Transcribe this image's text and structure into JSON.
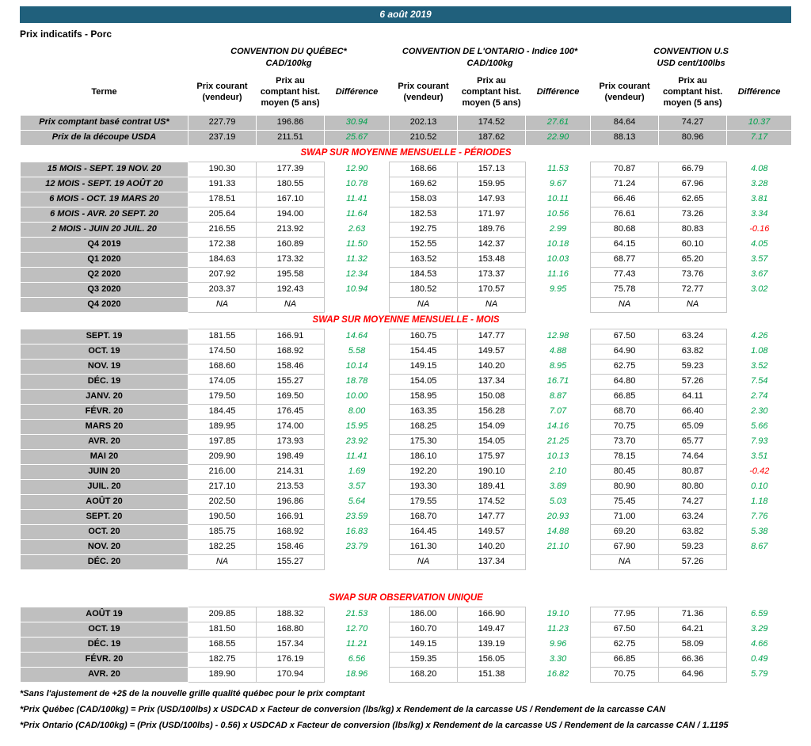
{
  "header": {
    "date": "6 août 2019",
    "title": "Prix indicatifs - Porc"
  },
  "groups": [
    {
      "name": "CONVENTION DU QUÉBEC*",
      "unit": "CAD/100kg"
    },
    {
      "name": "CONVENTION DE L'ONTARIO - Indice 100*",
      "unit": "CAD/100kg"
    },
    {
      "name": "CONVENTION U.S",
      "unit": "USD cent/100lbs"
    }
  ],
  "columns": {
    "terme": "Terme",
    "prix_courant": "Prix courant (vendeur)",
    "prix_comptant": "Prix au comptant hist. moyen (5 ans)",
    "difference": "Différence"
  },
  "top_rows": [
    {
      "terme": "Prix comptant basé contrat US*",
      "values": [
        "227.79",
        "196.86",
        "30.94",
        "202.13",
        "174.52",
        "27.61",
        "84.64",
        "74.27",
        "10.37"
      ]
    },
    {
      "terme": "Prix de la découpe USDA",
      "values": [
        "237.19",
        "211.51",
        "25.67",
        "210.52",
        "187.62",
        "22.90",
        "88.13",
        "80.96",
        "7.17"
      ]
    }
  ],
  "sections": [
    {
      "title": "SWAP SUR MOYENNE MENSUELLE - PÉRIODES",
      "rows": [
        {
          "terme": "15 MOIS -  SEPT. 19 NOV. 20",
          "values": [
            "190.30",
            "177.39",
            "12.90",
            "168.66",
            "157.13",
            "11.53",
            "70.87",
            "66.79",
            "4.08"
          ]
        },
        {
          "terme": "12 MOIS -  SEPT. 19 AOÛT 20",
          "values": [
            "191.33",
            "180.55",
            "10.78",
            "169.62",
            "159.95",
            "9.67",
            "71.24",
            "67.96",
            "3.28"
          ]
        },
        {
          "terme": "6 MOIS -  OCT. 19 MARS 20",
          "values": [
            "178.51",
            "167.10",
            "11.41",
            "158.03",
            "147.93",
            "10.11",
            "66.46",
            "62.65",
            "3.81"
          ]
        },
        {
          "terme": "6 MOIS -  AVR. 20 SEPT. 20",
          "values": [
            "205.64",
            "194.00",
            "11.64",
            "182.53",
            "171.97",
            "10.56",
            "76.61",
            "73.26",
            "3.34"
          ]
        },
        {
          "terme": "2 MOIS -  JUIN 20  JUIL. 20",
          "values": [
            "216.55",
            "213.92",
            "2.63",
            "192.75",
            "189.76",
            "2.99",
            "80.68",
            "80.83",
            "-0.16"
          ]
        },
        {
          "terme": "Q4 2019",
          "values": [
            "172.38",
            "160.89",
            "11.50",
            "152.55",
            "142.37",
            "10.18",
            "64.15",
            "60.10",
            "4.05"
          ]
        },
        {
          "terme": "Q1 2020",
          "values": [
            "184.63",
            "173.32",
            "11.32",
            "163.52",
            "153.48",
            "10.03",
            "68.77",
            "65.20",
            "3.57"
          ]
        },
        {
          "terme": "Q2 2020",
          "values": [
            "207.92",
            "195.58",
            "12.34",
            "184.53",
            "173.37",
            "11.16",
            "77.43",
            "73.76",
            "3.67"
          ]
        },
        {
          "terme": "Q3 2020",
          "values": [
            "203.37",
            "192.43",
            "10.94",
            "180.52",
            "170.57",
            "9.95",
            "75.78",
            "72.77",
            "3.02"
          ]
        },
        {
          "terme": "Q4 2020",
          "values": [
            "NA",
            "NA",
            "",
            "NA",
            "NA",
            "",
            "NA",
            "NA",
            ""
          ]
        }
      ]
    },
    {
      "title": "SWAP SUR MOYENNE MENSUELLE - MOIS",
      "rows": [
        {
          "terme": "SEPT. 19",
          "values": [
            "181.55",
            "166.91",
            "14.64",
            "160.75",
            "147.77",
            "12.98",
            "67.50",
            "63.24",
            "4.26"
          ]
        },
        {
          "terme": "OCT. 19",
          "values": [
            "174.50",
            "168.92",
            "5.58",
            "154.45",
            "149.57",
            "4.88",
            "64.90",
            "63.82",
            "1.08"
          ]
        },
        {
          "terme": "NOV. 19",
          "values": [
            "168.60",
            "158.46",
            "10.14",
            "149.15",
            "140.20",
            "8.95",
            "62.75",
            "59.23",
            "3.52"
          ]
        },
        {
          "terme": "DÉC. 19",
          "values": [
            "174.05",
            "155.27",
            "18.78",
            "154.05",
            "137.34",
            "16.71",
            "64.80",
            "57.26",
            "7.54"
          ]
        },
        {
          "terme": "JANV. 20",
          "values": [
            "179.50",
            "169.50",
            "10.00",
            "158.95",
            "150.08",
            "8.87",
            "66.85",
            "64.11",
            "2.74"
          ]
        },
        {
          "terme": "FÉVR. 20",
          "values": [
            "184.45",
            "176.45",
            "8.00",
            "163.35",
            "156.28",
            "7.07",
            "68.70",
            "66.40",
            "2.30"
          ]
        },
        {
          "terme": "MARS 20",
          "values": [
            "189.95",
            "174.00",
            "15.95",
            "168.25",
            "154.09",
            "14.16",
            "70.75",
            "65.09",
            "5.66"
          ]
        },
        {
          "terme": "AVR. 20",
          "values": [
            "197.85",
            "173.93",
            "23.92",
            "175.30",
            "154.05",
            "21.25",
            "73.70",
            "65.77",
            "7.93"
          ]
        },
        {
          "terme": "MAI 20",
          "values": [
            "209.90",
            "198.49",
            "11.41",
            "186.10",
            "175.97",
            "10.13",
            "78.15",
            "74.64",
            "3.51"
          ]
        },
        {
          "terme": "JUIN 20",
          "values": [
            "216.00",
            "214.31",
            "1.69",
            "192.20",
            "190.10",
            "2.10",
            "80.45",
            "80.87",
            "-0.42"
          ]
        },
        {
          "terme": "JUIL. 20",
          "values": [
            "217.10",
            "213.53",
            "3.57",
            "193.30",
            "189.41",
            "3.89",
            "80.90",
            "80.80",
            "0.10"
          ]
        },
        {
          "terme": "AOÛT 20",
          "values": [
            "202.50",
            "196.86",
            "5.64",
            "179.55",
            "174.52",
            "5.03",
            "75.45",
            "74.27",
            "1.18"
          ]
        },
        {
          "terme": "SEPT. 20",
          "values": [
            "190.50",
            "166.91",
            "23.59",
            "168.70",
            "147.77",
            "20.93",
            "71.00",
            "63.24",
            "7.76"
          ]
        },
        {
          "terme": "OCT. 20",
          "values": [
            "185.75",
            "168.92",
            "16.83",
            "164.45",
            "149.57",
            "14.88",
            "69.20",
            "63.82",
            "5.38"
          ]
        },
        {
          "terme": "NOV. 20",
          "values": [
            "182.25",
            "158.46",
            "23.79",
            "161.30",
            "140.20",
            "21.10",
            "67.90",
            "59.23",
            "8.67"
          ]
        },
        {
          "terme": "DÉC. 20",
          "values": [
            "NA",
            "155.27",
            "",
            "NA",
            "137.34",
            "",
            "NA",
            "57.26",
            ""
          ]
        }
      ]
    },
    {
      "title": "SWAP SUR OBSERVATION UNIQUE",
      "rows": [
        {
          "terme": "AOÛT 19",
          "values": [
            "209.85",
            "188.32",
            "21.53",
            "186.00",
            "166.90",
            "19.10",
            "77.95",
            "71.36",
            "6.59"
          ]
        },
        {
          "terme": "OCT. 19",
          "values": [
            "181.50",
            "168.80",
            "12.70",
            "160.70",
            "149.47",
            "11.23",
            "67.50",
            "64.21",
            "3.29"
          ]
        },
        {
          "terme": "DÉC. 19",
          "values": [
            "168.55",
            "157.34",
            "11.21",
            "149.15",
            "139.19",
            "9.96",
            "62.75",
            "58.09",
            "4.66"
          ]
        },
        {
          "terme": "FÉVR. 20",
          "values": [
            "182.75",
            "176.19",
            "6.56",
            "159.35",
            "156.05",
            "3.30",
            "66.85",
            "66.36",
            "0.49"
          ]
        },
        {
          "terme": "AVR. 20",
          "values": [
            "189.90",
            "170.94",
            "18.96",
            "168.20",
            "151.38",
            "16.82",
            "70.75",
            "64.96",
            "5.79"
          ]
        }
      ]
    }
  ],
  "footnotes": [
    "*Sans l'ajustement de +2$ de la nouvelle grille qualité québec pour le prix comptant",
    "*Prix Québec (CAD/100kg) = Prix (USD/100lbs) x USDCAD x Facteur de conversion (lbs/kg) x Rendement de la carcasse US / Rendement de la carcasse CAN",
    "*Prix Ontario (CAD/100kg) = (Prix (USD/100lbs) - 0.56) x USDCAD x Facteur de conversion (lbs/kg) x Rendement de la carcasse US / Rendement de la carcasse CAN / 1.1195"
  ],
  "colors": {
    "banner": "#20607C",
    "gray": "#BFBFBF",
    "positive": "#00A24E",
    "negative": "#FF0000",
    "section": "#FF0000"
  }
}
